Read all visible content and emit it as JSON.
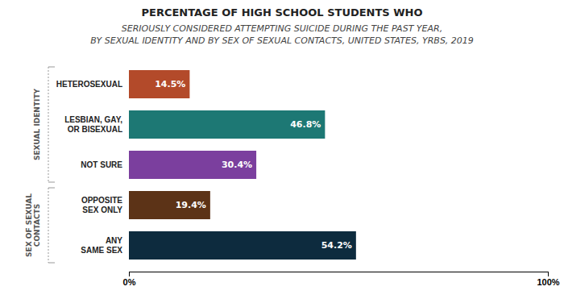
{
  "chart_data": {
    "type": "bar",
    "orientation": "horizontal",
    "title": "PERCENTAGE OF HIGH SCHOOL STUDENTS WHO",
    "subtitle": [
      "SERIOUSLY CONSIDERED ATTEMPTING SUICIDE DURING THE PAST YEAR,",
      "BY SEXUAL IDENTITY AND BY SEX OF SEXUAL CONTACTS, UNITED STATES, YRBS, 2019"
    ],
    "categories": [
      "HETEROSEXUAL",
      "LESBIAN, GAY,\nOR BISEXUAL",
      "NOT SURE",
      "OPPOSITE\nSEX ONLY",
      "ANY\nSAME SEX"
    ],
    "values": [
      14.5,
      46.8,
      30.4,
      19.4,
      54.2
    ],
    "value_labels": [
      "14.5%",
      "46.8%",
      "30.4%",
      "19.4%",
      "54.2%"
    ],
    "data_labels": true,
    "colors": [
      "#b34a2a",
      "#1d7874",
      "#7b3f9e",
      "#5c3317",
      "#0d2b3e"
    ],
    "xlim": [
      0,
      100
    ],
    "xticks": [
      {
        "value": 0,
        "label": "0%"
      },
      {
        "value": 100,
        "label": "100%"
      }
    ],
    "grid": false,
    "annotations": [
      {
        "text": "SEXUAL IDENTITY",
        "categories": [
          "HETEROSEXUAL",
          "LESBIAN, GAY,\nOR BISEXUAL",
          "NOT SURE"
        ]
      },
      {
        "text": "SEX OF SEXUAL\nCONTACTS",
        "categories": [
          "OPPOSITE\nSEX ONLY",
          "ANY\nSAME SEX"
        ]
      }
    ]
  }
}
